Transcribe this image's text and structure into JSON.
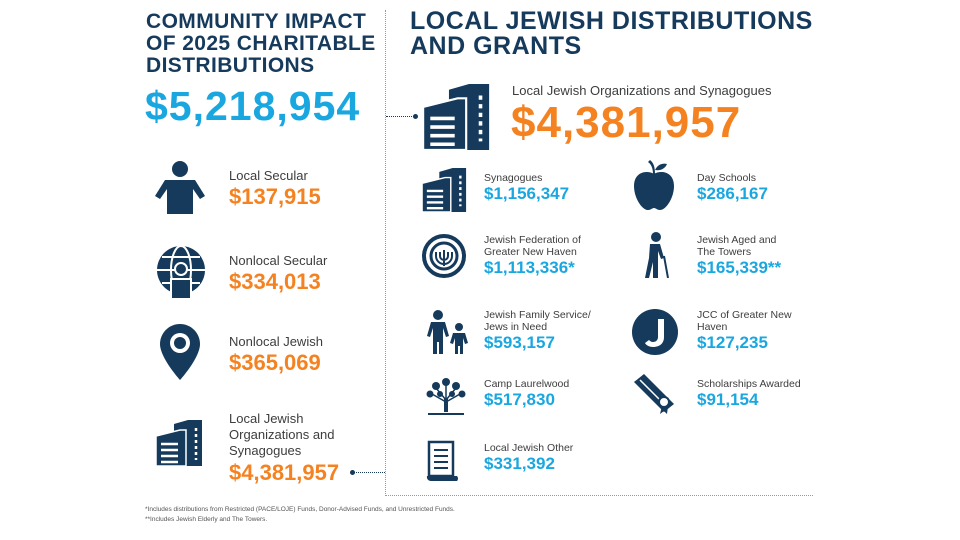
{
  "left": {
    "title": "COMMUNITY IMPACT OF 2025 CHARITABLE DISTRIBUTIONS",
    "total": "$5,218,954",
    "items": [
      {
        "label": "Local Secular",
        "value": "$137,915",
        "icon": "person-icon"
      },
      {
        "label": "Nonlocal Secular",
        "value": "$334,013",
        "icon": "globe-person-icon"
      },
      {
        "label": "Nonlocal Jewish",
        "value": "$365,069",
        "icon": "map-pin-icon"
      },
      {
        "label": "Local Jewish Organizations and Synagogues",
        "value": "$4,381,957",
        "icon": "building-icon"
      }
    ]
  },
  "right": {
    "title": "LOCAL JEWISH DISTRIBUTIONS AND GRANTS",
    "main_label": "Local Jewish Organizations and Synagogues",
    "main_value": "$4,381,957",
    "items": [
      {
        "label": "Synagogues",
        "value": "$1,156,347",
        "icon": "building-icon"
      },
      {
        "label": "Day Schools",
        "value": "$286,167",
        "icon": "apple-icon"
      },
      {
        "label": "Jewish Federation of Greater New Haven",
        "value": "$1,113,336*",
        "icon": "federation-logo-icon"
      },
      {
        "label": "Jewish Aged and The Towers",
        "value": "$165,339**",
        "icon": "elderly-person-icon"
      },
      {
        "label": "Jewish Family Service/ Jews in Need",
        "value": "$593,157",
        "icon": "family-icon"
      },
      {
        "label": "JCC of Greater New Haven",
        "value": "$127,235",
        "icon": "jcc-logo-icon"
      },
      {
        "label": "Camp Laurelwood",
        "value": "$517,830",
        "icon": "tree-icon"
      },
      {
        "label": "Scholarships Awarded",
        "value": "$91,154",
        "icon": "diploma-icon"
      },
      {
        "label": "Local Jewish Other",
        "value": "$331,392",
        "icon": "scroll-icon"
      }
    ]
  },
  "footnotes": [
    "*Includes distributions from Restricted (PACE/LOJE) Funds, Donor-Advised Funds, and Unrestricted Funds.",
    "**Includes Jewish Elderly and The Towers."
  ],
  "colors": {
    "navy": "#153a5b",
    "orange": "#f58220",
    "blue": "#1aa7e0"
  }
}
